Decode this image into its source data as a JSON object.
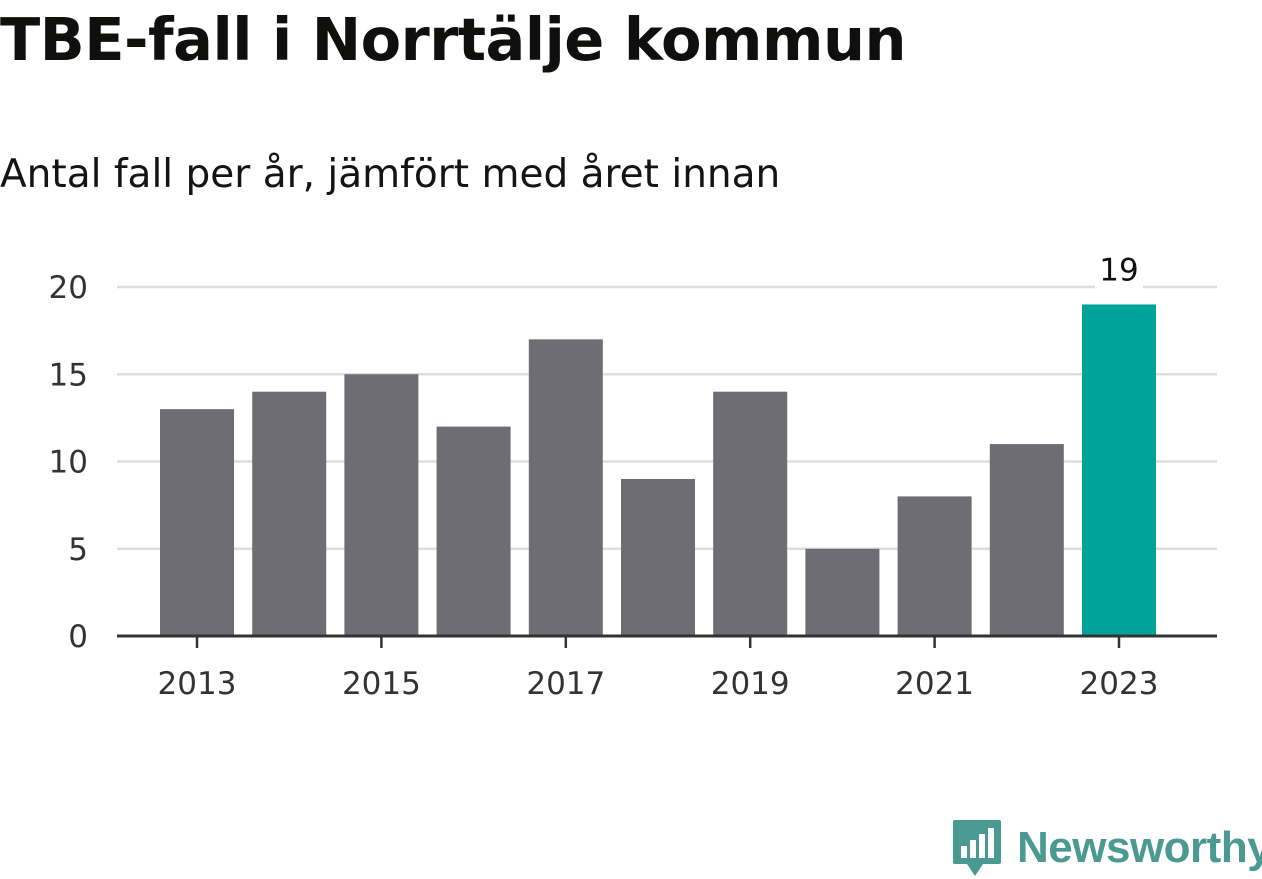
{
  "title": "TBE-fall i Norrtälje kommun",
  "subtitle": "Antal fall per år, jämfört med året innan",
  "brand": {
    "name": "Newsworthy",
    "color": "#4a9a91",
    "icon": "bar-chart-speech-bubble-icon"
  },
  "colors": {
    "bar": "#6e6d73",
    "highlight": "#00a398",
    "grid": "#dddddd",
    "axis": "#333333"
  },
  "chart_data": {
    "type": "bar",
    "categories": [
      "2013",
      "2014",
      "2015",
      "2016",
      "2017",
      "2018",
      "2019",
      "2020",
      "2021",
      "2022",
      "2023"
    ],
    "values": [
      13,
      14,
      15,
      12,
      17,
      9,
      14,
      5,
      8,
      11,
      19
    ],
    "x_tick_labels": [
      "2013",
      "2015",
      "2017",
      "2019",
      "2021",
      "2023"
    ],
    "y_ticks": [
      0,
      5,
      10,
      15,
      20
    ],
    "ylim": [
      0,
      20
    ],
    "highlight_category": "2023",
    "data_labels": [
      {
        "category": "2023",
        "text": "19"
      }
    ],
    "grid": true,
    "legend": "none",
    "title": "TBE-fall i Norrtälje kommun",
    "subtitle": "Antal fall per år, jämfört med året innan",
    "xlabel": "",
    "ylabel": ""
  }
}
